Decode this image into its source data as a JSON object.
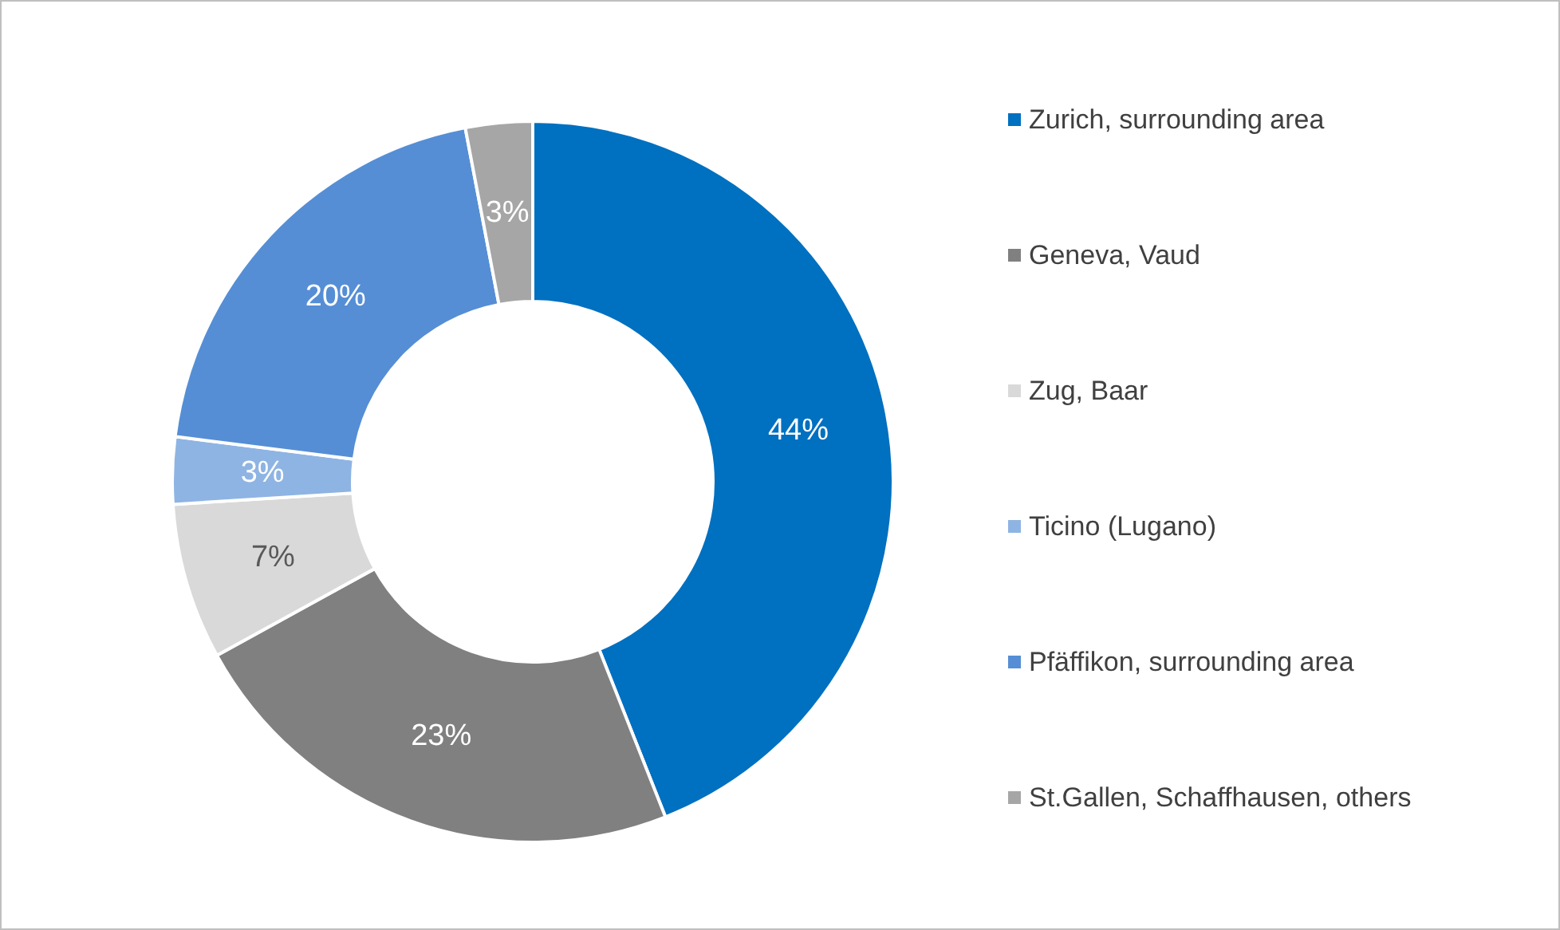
{
  "chart_data": {
    "type": "donut",
    "categories": [
      "Zurich, surrounding area",
      "Geneva, Vaud",
      "Zug, Baar",
      "Ticino (Lugano)",
      "Pfäffikon, surrounding area",
      "St.Gallen, Schaffhausen, others"
    ],
    "values": [
      44,
      23,
      7,
      3,
      20,
      3
    ],
    "colors": [
      "#0070c0",
      "#808080",
      "#d9d9d9",
      "#8eb4e3",
      "#558ed5",
      "#a6a6a6"
    ],
    "value_labels": [
      "44%",
      "23%",
      "7%",
      "3%",
      "20%",
      "3%"
    ],
    "legend": "right"
  }
}
